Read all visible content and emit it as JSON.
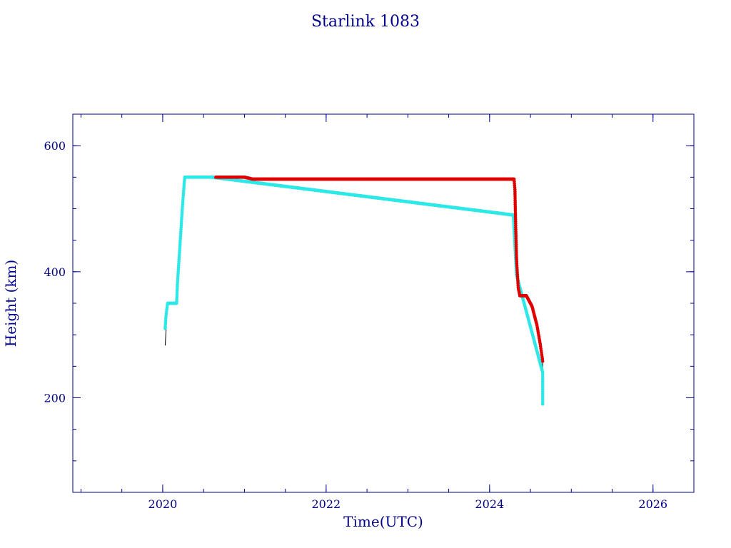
{
  "chart_data": {
    "type": "scatter",
    "title": "Starlink 1083",
    "xlabel": "Time(UTC)",
    "ylabel": "Height (km)",
    "xlim": [
      2018.9,
      2026.5
    ],
    "ylim": [
      50,
      650
    ],
    "x_ticks": [
      {
        "value": 2020,
        "label": "2020"
      },
      {
        "value": 2022,
        "label": "2022"
      },
      {
        "value": 2024,
        "label": "2024"
      },
      {
        "value": 2026,
        "label": "2026"
      }
    ],
    "y_ticks": [
      {
        "value": 200,
        "label": "200"
      },
      {
        "value": 400,
        "label": "400"
      },
      {
        "value": 600,
        "label": "600"
      }
    ],
    "x_minor_step": 0.5,
    "y_minor_step": 50,
    "grid": false,
    "colors": {
      "axes": "#00008b",
      "text": "#00008b",
      "trace": "#000000",
      "cyan": "#2ee8e8",
      "red": "#e00000"
    },
    "series": [
      {
        "color": "cyan",
        "values": [
          [
            2020.03,
            310
          ],
          [
            2020.04,
            330
          ],
          [
            2020.06,
            350
          ],
          [
            2020.1,
            350
          ],
          [
            2020.17,
            350
          ],
          [
            2020.18,
            380
          ],
          [
            2020.2,
            420
          ],
          [
            2020.22,
            460
          ],
          [
            2020.24,
            500
          ],
          [
            2020.26,
            535
          ],
          [
            2020.27,
            550
          ],
          [
            2020.4,
            550
          ],
          [
            2020.6,
            550
          ],
          [
            2024.29,
            490
          ],
          [
            2024.31,
            440
          ],
          [
            2024.33,
            395
          ],
          [
            2024.65,
            240
          ],
          [
            2024.65,
            220
          ],
          [
            2024.65,
            210
          ],
          [
            2024.65,
            200
          ],
          [
            2024.65,
            190
          ]
        ]
      },
      {
        "color": "red",
        "values": [
          [
            2020.65,
            550
          ],
          [
            2020.8,
            550
          ],
          [
            2021.0,
            550
          ],
          [
            2021.1,
            547
          ],
          [
            2021.5,
            547
          ],
          [
            2022.0,
            547
          ],
          [
            2022.5,
            547
          ],
          [
            2023.0,
            547
          ],
          [
            2023.5,
            547
          ],
          [
            2024.0,
            547
          ],
          [
            2024.3,
            547
          ],
          [
            2024.31,
            530
          ],
          [
            2024.32,
            470
          ],
          [
            2024.33,
            420
          ],
          [
            2024.35,
            375
          ],
          [
            2024.37,
            362
          ],
          [
            2024.45,
            362
          ],
          [
            2024.52,
            345
          ],
          [
            2024.58,
            315
          ],
          [
            2024.62,
            285
          ],
          [
            2024.65,
            258
          ]
        ]
      }
    ],
    "trace": [
      [
        2020.03,
        283
      ],
      [
        2020.06,
        350
      ],
      [
        2020.17,
        350
      ],
      [
        2020.27,
        550
      ],
      [
        2021.05,
        550
      ],
      [
        2021.1,
        547
      ],
      [
        2024.3,
        547
      ],
      [
        2024.36,
        362
      ],
      [
        2024.45,
        362
      ],
      [
        2024.55,
        330
      ],
      [
        2024.65,
        258
      ],
      [
        2024.65,
        190
      ]
    ]
  }
}
